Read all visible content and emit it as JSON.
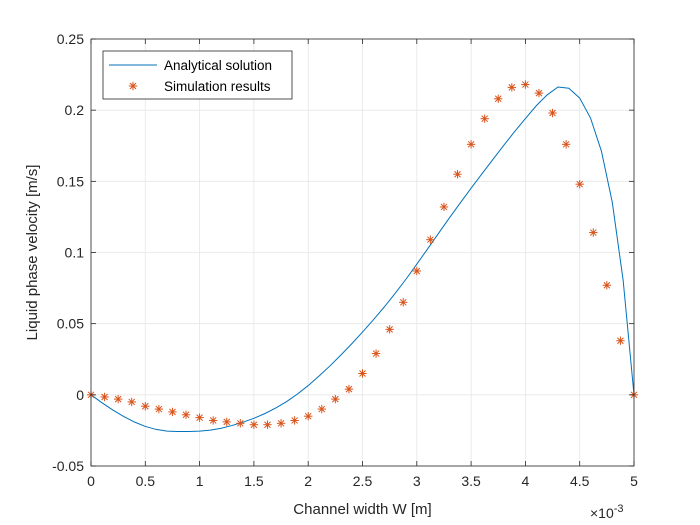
{
  "chart_data": {
    "type": "line",
    "xlabel": "Channel width W [m]",
    "ylabel": "Liquid phase velocity [m/s]",
    "x_exponent_label": "×10",
    "x_exponent_value": "-3",
    "xlim": [
      0,
      0.005
    ],
    "ylim": [
      -0.05,
      0.25
    ],
    "x_ticks": [
      0,
      0.0005,
      0.001,
      0.0015,
      0.002,
      0.0025,
      0.003,
      0.0035,
      0.004,
      0.0045,
      0.005
    ],
    "x_tick_labels": [
      "0",
      "0.5",
      "1",
      "1.5",
      "2",
      "2.5",
      "3",
      "3.5",
      "4",
      "4.5",
      "5"
    ],
    "y_ticks": [
      -0.05,
      0,
      0.05,
      0.1,
      0.15,
      0.2,
      0.25
    ],
    "y_tick_labels": [
      "-0.05",
      "0",
      "0.05",
      "0.1",
      "0.15",
      "0.2",
      "0.25"
    ],
    "grid": true,
    "legend_position": "top-left",
    "series": [
      {
        "name": "Analytical solution",
        "style": "line",
        "color": "#0072BD",
        "x": [
          0,
          0.0001,
          0.0002,
          0.0003,
          0.0004,
          0.0005,
          0.0006,
          0.0007,
          0.0008,
          0.0009,
          0.001,
          0.0011,
          0.0012,
          0.0013,
          0.0014,
          0.0015,
          0.0016,
          0.0017,
          0.0018,
          0.0019,
          0.002,
          0.0021,
          0.0022,
          0.0023,
          0.0024,
          0.0025,
          0.0026,
          0.0027,
          0.0028,
          0.0029,
          0.003,
          0.0031,
          0.0032,
          0.0033,
          0.0034,
          0.0035,
          0.0036,
          0.0037,
          0.0038,
          0.0039,
          0.004,
          0.0041,
          0.0042,
          0.0043,
          0.0044,
          0.0045,
          0.0046,
          0.0047,
          0.0048,
          0.0049,
          0.005
        ],
        "y": [
          0,
          -0.0055,
          -0.0106,
          -0.0152,
          -0.0191,
          -0.0222,
          -0.0243,
          -0.0255,
          -0.0258,
          -0.0258,
          -0.0255,
          -0.0248,
          -0.0235,
          -0.0215,
          -0.0192,
          -0.0165,
          -0.0132,
          -0.0093,
          -0.0048,
          0.0005,
          0.0065,
          0.0132,
          0.0203,
          0.0279,
          0.0358,
          0.0441,
          0.0527,
          0.0617,
          0.0712,
          0.0812,
          0.0918,
          0.1026,
          0.1135,
          0.1243,
          0.1348,
          0.1452,
          0.1553,
          0.1653,
          0.1752,
          0.1849,
          0.1941,
          0.2031,
          0.2107,
          0.2163,
          0.2154,
          0.2085,
          0.1944,
          0.1712,
          0.1353,
          0.0805,
          0
        ]
      },
      {
        "name": "Simulation results",
        "style": "marker",
        "marker": "asterisk",
        "color": "#D95319",
        "x": [
          0,
          0.000125,
          0.00025,
          0.000375,
          0.0005,
          0.000625,
          0.00075,
          0.000875,
          0.001,
          0.001125,
          0.00125,
          0.001375,
          0.0015,
          0.001625,
          0.00175,
          0.001875,
          0.002,
          0.002125,
          0.00225,
          0.002375,
          0.0025,
          0.002625,
          0.00275,
          0.002875,
          0.003,
          0.003125,
          0.00325,
          0.003375,
          0.0035,
          0.003625,
          0.00375,
          0.003875,
          0.004,
          0.004125,
          0.00425,
          0.004375,
          0.0045,
          0.004625,
          0.00475,
          0.004875,
          0.005
        ],
        "y": [
          0,
          -0.0015,
          -0.003,
          -0.005,
          -0.008,
          -0.01,
          -0.012,
          -0.014,
          -0.016,
          -0.018,
          -0.019,
          -0.02,
          -0.021,
          -0.021,
          -0.02,
          -0.018,
          -0.015,
          -0.01,
          -0.003,
          0.004,
          0.015,
          0.029,
          0.046,
          0.065,
          0.087,
          0.109,
          0.132,
          0.155,
          0.176,
          0.194,
          0.208,
          0.216,
          0.218,
          0.212,
          0.198,
          0.176,
          0.148,
          0.114,
          0.077,
          0.038,
          0
        ]
      }
    ]
  }
}
